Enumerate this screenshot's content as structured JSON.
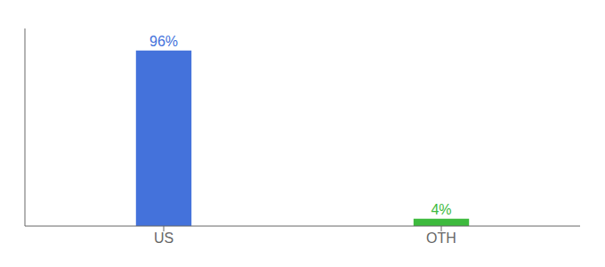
{
  "chart_data": {
    "type": "bar",
    "categories": [
      "US",
      "OTH"
    ],
    "values": [
      96,
      4
    ],
    "value_labels": [
      "96%",
      "4%"
    ],
    "data_labels": true,
    "colors": [
      "#4472db",
      "#3dba3d"
    ],
    "ylim": [
      0,
      108
    ],
    "tick_labels": "x",
    "grid": false
  }
}
